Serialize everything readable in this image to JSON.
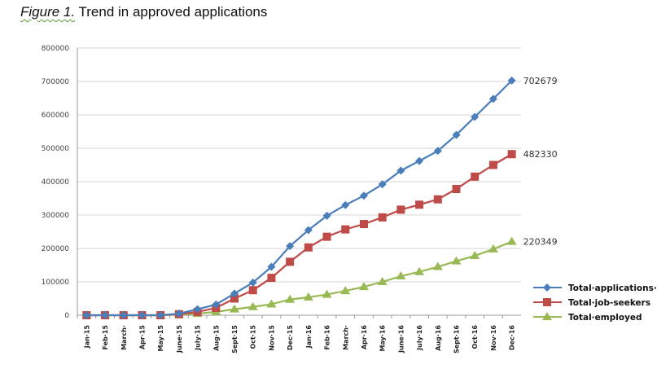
{
  "title": {
    "prefix": "Figure 1.",
    "text": "Trend in approved applications"
  },
  "chart_data": {
    "type": "line",
    "title": "Trend in approved applications",
    "xlabel": "",
    "ylabel": "",
    "ylim": [
      0,
      800000
    ],
    "yticks": [
      "0",
      "100000",
      "200000",
      "300000",
      "400000",
      "500000",
      "600000",
      "700000",
      "800000"
    ],
    "grid": true,
    "legend_position": "bottom-right",
    "categories": [
      "Jan·15",
      "Feb·15",
      "March·",
      "Apr·15",
      "May·15",
      "June·15",
      "July·15",
      "Aug·15",
      "Sept·15",
      "Oct·15",
      "Nov·15",
      "Dec·15",
      "Jan·16",
      "Feb·16",
      "March·",
      "Apr·16",
      "May·16",
      "June·16",
      "July·16",
      "Aug·16",
      "Sept·16",
      "Oct·16",
      "Nov·16",
      "Dec·16"
    ],
    "series": [
      {
        "name": "Total·applications·",
        "color": "#4a7ebb",
        "marker": "diamond",
        "values": [
          0,
          0,
          0,
          0,
          0,
          5000,
          18000,
          32000,
          65000,
          98000,
          145000,
          207000,
          255000,
          298000,
          330000,
          358000,
          392000,
          433000,
          462000,
          492000,
          540000,
          594000,
          648000,
          702679
        ],
        "end_label": "702679"
      },
      {
        "name": "Total·job-seekers",
        "color": "#be4b48",
        "marker": "square",
        "values": [
          0,
          0,
          0,
          0,
          0,
          3000,
          10000,
          22000,
          50000,
          75000,
          112000,
          160000,
          203000,
          235000,
          257000,
          273000,
          293000,
          316000,
          331000,
          347000,
          378000,
          415000,
          450000,
          482330
        ],
        "end_label": "482330"
      },
      {
        "name": "Total·employed",
        "color": "#98b954",
        "marker": "triangle",
        "values": [
          0,
          0,
          0,
          0,
          0,
          2000,
          5000,
          10000,
          18000,
          25000,
          33000,
          47000,
          54000,
          62000,
          73000,
          85000,
          100000,
          117000,
          130000,
          145000,
          162000,
          178000,
          198000,
          220349
        ],
        "end_label": "220349"
      }
    ]
  }
}
